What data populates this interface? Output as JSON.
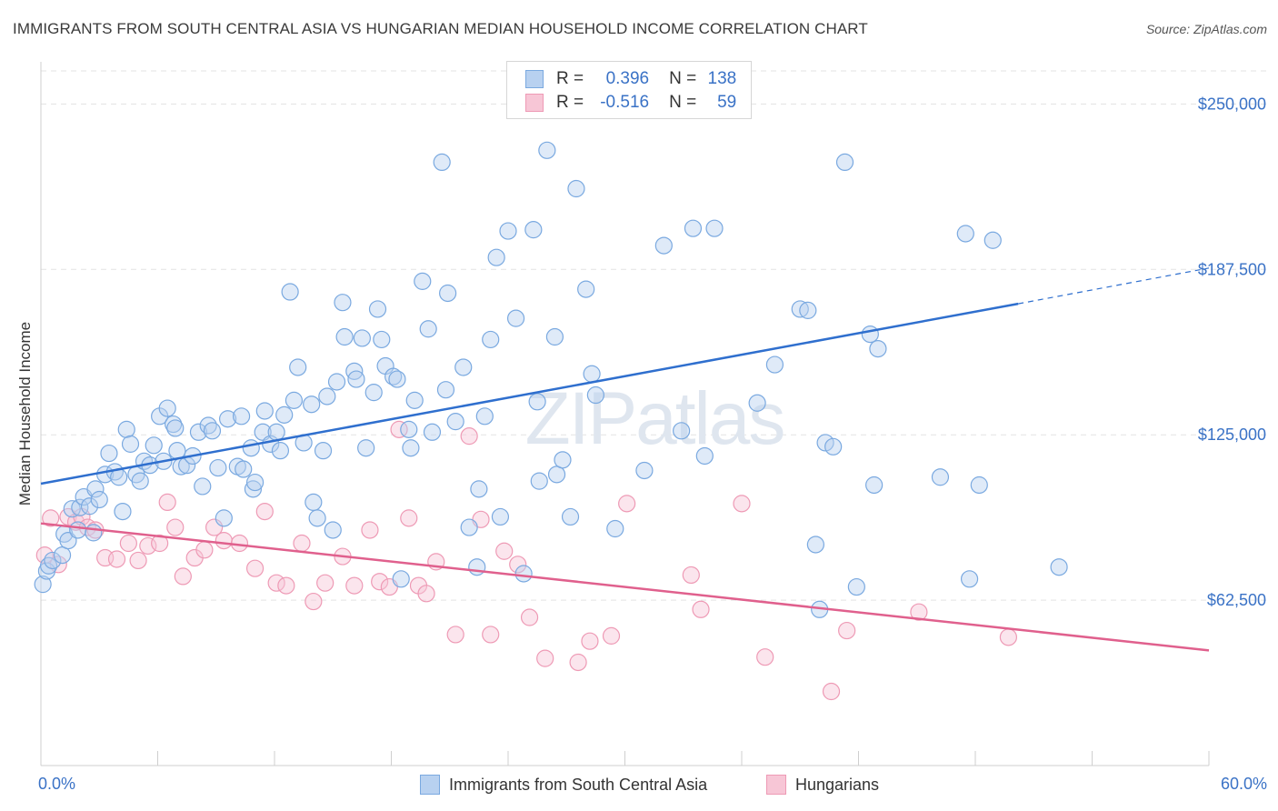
{
  "title": "IMMIGRANTS FROM SOUTH CENTRAL ASIA VS HUNGARIAN MEDIAN HOUSEHOLD INCOME CORRELATION CHART",
  "source": "Source: ZipAtlas.com",
  "watermark": "ZIPatlas",
  "colors": {
    "blue": "#7aa9e0",
    "blue_fill": "#b8d1f0",
    "blue_line": "#2f6fce",
    "pink": "#ee9ab5",
    "pink_fill": "#f7c6d6",
    "pink_line": "#e0608d",
    "tick_text": "#3a72c6"
  },
  "legend_top": {
    "rows": [
      {
        "r_label": "R =",
        "r_value": "0.396",
        "n_label": "N =",
        "n_value": "138"
      },
      {
        "r_label": "R =",
        "r_value": "-0.516",
        "n_label": "N =",
        "n_value": "59"
      }
    ]
  },
  "legend_bottom": {
    "series1": "Immigrants from South Central Asia",
    "series2": "Hungarians"
  },
  "chart_data": {
    "type": "scatter",
    "title": "IMMIGRANTS FROM SOUTH CENTRAL ASIA VS HUNGARIAN MEDIAN HOUSEHOLD INCOME CORRELATION CHART",
    "xlabel": "",
    "ylabel": "Median Household Income",
    "xlim": [
      0,
      60
    ],
    "ylim": [
      0,
      262500
    ],
    "x_tick_labels": [
      "0.0%",
      "60.0%"
    ],
    "y_ticks": [
      62500,
      125000,
      187500,
      250000
    ],
    "y_tick_labels": [
      "$62,500",
      "$125,000",
      "$187,500",
      "$250,000"
    ],
    "series": [
      {
        "name": "Immigrants from South Central Asia",
        "R": 0.396,
        "N": 138,
        "trend": {
          "x0": 0,
          "y0": 106500,
          "x1": 50.2,
          "y1": 174500,
          "dash_x1": 60,
          "dash_y1": 188000
        },
        "points": [
          [
            0.1,
            68.5
          ],
          [
            0.3,
            73.5
          ],
          [
            0.4,
            75.5
          ],
          [
            0.6,
            77.5
          ],
          [
            1.1,
            79.5
          ],
          [
            1.2,
            87.5
          ],
          [
            1.4,
            85
          ],
          [
            1.6,
            97
          ],
          [
            1.9,
            89
          ],
          [
            2.0,
            97.5
          ],
          [
            2.2,
            101.5
          ],
          [
            2.5,
            98
          ],
          [
            2.7,
            88
          ],
          [
            2.8,
            104.5
          ],
          [
            3.0,
            100.5
          ],
          [
            3.3,
            110
          ],
          [
            3.5,
            118
          ],
          [
            3.8,
            111
          ],
          [
            4.0,
            109
          ],
          [
            4.2,
            96
          ],
          [
            4.4,
            127
          ],
          [
            4.6,
            121.5
          ],
          [
            4.9,
            110
          ],
          [
            5.1,
            107.5
          ],
          [
            5.3,
            115
          ],
          [
            5.6,
            113.5
          ],
          [
            5.8,
            121
          ],
          [
            6.1,
            132
          ],
          [
            6.3,
            115
          ],
          [
            6.5,
            135
          ],
          [
            6.8,
            129
          ],
          [
            6.9,
            127.5
          ],
          [
            7.0,
            119
          ],
          [
            7.2,
            113
          ],
          [
            7.5,
            113.5
          ],
          [
            7.8,
            117
          ],
          [
            8.1,
            126
          ],
          [
            8.3,
            105.5
          ],
          [
            8.6,
            128.5
          ],
          [
            8.8,
            126.5
          ],
          [
            9.1,
            112.5
          ],
          [
            9.4,
            93.5
          ],
          [
            9.6,
            131
          ],
          [
            10.1,
            113
          ],
          [
            10.3,
            132
          ],
          [
            10.4,
            112
          ],
          [
            10.8,
            120
          ],
          [
            10.9,
            104.5
          ],
          [
            11.0,
            107
          ],
          [
            11.4,
            126
          ],
          [
            11.5,
            134
          ],
          [
            11.8,
            121.5
          ],
          [
            12.1,
            126
          ],
          [
            12.3,
            119
          ],
          [
            12.5,
            132.5
          ],
          [
            12.8,
            179
          ],
          [
            13.0,
            138
          ],
          [
            13.2,
            150.5
          ],
          [
            13.5,
            122
          ],
          [
            13.9,
            136.5
          ],
          [
            14.0,
            99.5
          ],
          [
            14.2,
            93.5
          ],
          [
            14.5,
            119
          ],
          [
            14.7,
            139.5
          ],
          [
            15.0,
            89
          ],
          [
            15.2,
            145
          ],
          [
            15.5,
            175
          ],
          [
            15.6,
            162
          ],
          [
            16.1,
            149
          ],
          [
            16.2,
            146
          ],
          [
            16.5,
            161.5
          ],
          [
            16.7,
            120
          ],
          [
            17.1,
            141
          ],
          [
            17.3,
            172.5
          ],
          [
            17.5,
            161
          ],
          [
            17.7,
            151
          ],
          [
            18.1,
            147
          ],
          [
            18.3,
            146
          ],
          [
            18.5,
            70.5
          ],
          [
            18.9,
            127
          ],
          [
            19.0,
            120
          ],
          [
            19.2,
            138
          ],
          [
            19.6,
            183
          ],
          [
            19.9,
            165
          ],
          [
            20.1,
            126
          ],
          [
            20.6,
            228
          ],
          [
            20.8,
            142
          ],
          [
            20.9,
            178.5
          ],
          [
            21.3,
            130
          ],
          [
            21.7,
            150.5
          ],
          [
            22.0,
            90
          ],
          [
            22.4,
            75
          ],
          [
            22.5,
            104.5
          ],
          [
            22.8,
            132
          ],
          [
            23.1,
            161
          ],
          [
            23.4,
            192
          ],
          [
            23.6,
            94
          ],
          [
            24.0,
            202
          ],
          [
            24.4,
            169
          ],
          [
            24.8,
            72.5
          ],
          [
            25.3,
            202.5
          ],
          [
            25.5,
            137.5
          ],
          [
            25.6,
            107.5
          ],
          [
            26.0,
            232.5
          ],
          [
            26.4,
            162
          ],
          [
            26.5,
            110
          ],
          [
            26.8,
            115.5
          ],
          [
            27.2,
            94
          ],
          [
            27.5,
            218
          ],
          [
            28.0,
            180
          ],
          [
            28.3,
            148
          ],
          [
            28.5,
            140
          ],
          [
            29.5,
            89.5
          ],
          [
            31.0,
            111.5
          ],
          [
            32.0,
            196.5
          ],
          [
            32.9,
            126.5
          ],
          [
            33.5,
            203
          ],
          [
            34.1,
            117
          ],
          [
            34.6,
            203
          ],
          [
            36.8,
            137
          ],
          [
            37.7,
            151.5
          ],
          [
            39.0,
            172.5
          ],
          [
            39.4,
            172
          ],
          [
            39.8,
            83.5
          ],
          [
            40.0,
            59
          ],
          [
            40.3,
            122
          ],
          [
            40.7,
            120.5
          ],
          [
            41.3,
            228
          ],
          [
            41.9,
            67.5
          ],
          [
            42.6,
            163
          ],
          [
            42.8,
            106
          ],
          [
            43.0,
            157.5
          ],
          [
            46.2,
            109
          ],
          [
            47.5,
            201
          ],
          [
            47.7,
            70.5
          ],
          [
            48.2,
            106
          ],
          [
            48.9,
            198.5
          ],
          [
            52.3,
            75
          ]
        ]
      },
      {
        "name": "Hungarians",
        "R": -0.516,
        "N": 59,
        "trend": {
          "x0": 0,
          "y0": 91500,
          "x1": 60,
          "y1": 43500
        },
        "points": [
          [
            0.2,
            79.5
          ],
          [
            0.5,
            93.5
          ],
          [
            0.9,
            76
          ],
          [
            1.4,
            94
          ],
          [
            1.8,
            92
          ],
          [
            2.1,
            94
          ],
          [
            2.4,
            90
          ],
          [
            2.8,
            89
          ],
          [
            3.3,
            78.5
          ],
          [
            3.9,
            78
          ],
          [
            4.5,
            84
          ],
          [
            5.0,
            77.5
          ],
          [
            5.5,
            83
          ],
          [
            6.1,
            84
          ],
          [
            6.5,
            99.5
          ],
          [
            6.9,
            90
          ],
          [
            7.3,
            71.5
          ],
          [
            7.9,
            78.5
          ],
          [
            8.4,
            81.5
          ],
          [
            8.9,
            90
          ],
          [
            9.4,
            85
          ],
          [
            10.2,
            84
          ],
          [
            11.0,
            74.5
          ],
          [
            11.5,
            96
          ],
          [
            12.1,
            69
          ],
          [
            12.6,
            68
          ],
          [
            13.4,
            84
          ],
          [
            14.0,
            62
          ],
          [
            14.6,
            69
          ],
          [
            15.5,
            79
          ],
          [
            16.1,
            68
          ],
          [
            16.9,
            89
          ],
          [
            17.4,
            69.5
          ],
          [
            17.9,
            67.5
          ],
          [
            18.4,
            127
          ],
          [
            18.9,
            93.5
          ],
          [
            19.4,
            68
          ],
          [
            19.8,
            65
          ],
          [
            20.3,
            77
          ],
          [
            21.3,
            49.5
          ],
          [
            22.0,
            124.5
          ],
          [
            22.6,
            93
          ],
          [
            23.1,
            49.5
          ],
          [
            23.8,
            81
          ],
          [
            24.5,
            76
          ],
          [
            25.1,
            56
          ],
          [
            25.9,
            40.5
          ],
          [
            27.6,
            39
          ],
          [
            28.2,
            47
          ],
          [
            29.3,
            49
          ],
          [
            30.1,
            99
          ],
          [
            33.4,
            72
          ],
          [
            33.9,
            59
          ],
          [
            36.0,
            99
          ],
          [
            37.2,
            41
          ],
          [
            40.6,
            28
          ],
          [
            41.4,
            51
          ],
          [
            45.1,
            58
          ],
          [
            49.7,
            48.5
          ]
        ]
      }
    ]
  }
}
